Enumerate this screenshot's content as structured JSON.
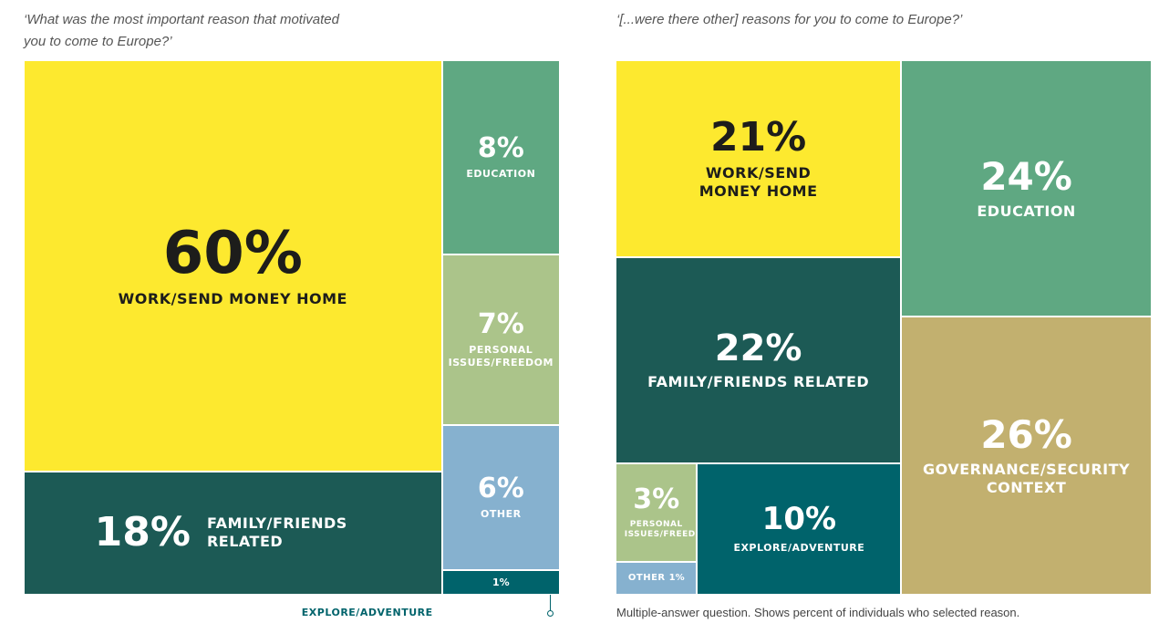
{
  "chart_data": [
    {
      "type": "treemap",
      "title": "‘What was the most important reason that motivated you to come to Europe?’",
      "categories": [
        "WORK/SEND MONEY HOME",
        "FAMILY/FRIENDS RELATED",
        "EDUCATION",
        "PERSONAL ISSUES/FREEDOM",
        "OTHER",
        "EXPLORE/ADVENTURE"
      ],
      "values": [
        60,
        18,
        8,
        7,
        6,
        1
      ],
      "value_labels": [
        "60%",
        "18%",
        "8%",
        "7%",
        "6%",
        "1%"
      ],
      "colors": [
        "#fde92f",
        "#1c5a55",
        "#5fa882",
        "#abc48a",
        "#86b1cf",
        "#00636b"
      ]
    },
    {
      "type": "treemap",
      "title": "‘[...were there other] reasons for you to come to Europe?’",
      "note": "Multiple-answer question. Shows percent of individuals who selected reason.",
      "categories": [
        "WORK/SEND MONEY HOME",
        "FAMILY/FRIENDS RELATED",
        "PERSONAL ISSUES/FREEDOM",
        "OTHER",
        "EXPLORE/ADVENTURE",
        "EDUCATION",
        "GOVERNANCE/SECURITY CONTEXT"
      ],
      "values": [
        21,
        22,
        3,
        1,
        10,
        24,
        26
      ],
      "value_labels": [
        "21%",
        "22%",
        "3%",
        "1%",
        "10%",
        "24%",
        "26%"
      ],
      "colors": [
        "#fde92f",
        "#1c5a55",
        "#abc48a",
        "#86b1cf",
        "#00636b",
        "#5fa882",
        "#c2b06f"
      ]
    }
  ]
}
